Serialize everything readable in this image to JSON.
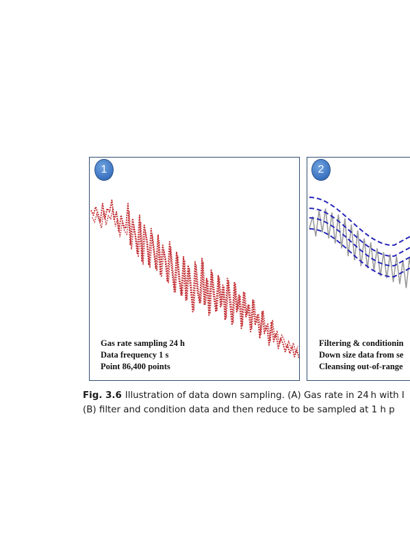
{
  "figure": {
    "panel_1": {
      "number": "1",
      "lines": [
        "Gas rate sampling 24 h",
        "Data frequency 1 s",
        "Point 86,400 points"
      ]
    },
    "panel_2": {
      "number": "2",
      "lines": [
        "Filtering & conditionin",
        "Down size data from se",
        "Cleansing out-of-range"
      ]
    },
    "caption": {
      "label": "Fig. 3.6",
      "line_1": "Illustration of data down sampling. (A) Gas rate in 24 h with I",
      "line_2": "(B) filter and condition data and then reduce to be sampled at 1 h p"
    }
  },
  "colors": {
    "raw_signal": "#c0282d",
    "filtered_signal": "#9a9a9a",
    "envelope": "#2323b8",
    "panel_border": "#2e4a6e",
    "badge": "#3b72c0"
  },
  "chart_data": [
    {
      "type": "line",
      "series": [
        {
          "values": [
            0.91,
            0.88,
            0.93,
            0.89,
            0.84,
            0.95,
            0.86,
            0.92,
            0.9,
            0.97,
            0.85,
            0.9,
            0.78,
            0.88,
            0.82,
            0.8,
            0.95,
            0.7,
            0.86,
            0.77,
            0.65,
            0.88,
            0.6,
            0.82,
            0.74,
            0.58,
            0.8,
            0.68,
            0.56,
            0.76,
            0.52,
            0.7,
            0.62,
            0.48,
            0.72,
            0.55,
            0.42,
            0.66,
            0.5,
            0.4,
            0.63,
            0.37,
            0.58,
            0.45,
            0.3,
            0.6,
            0.42,
            0.35,
            0.62,
            0.34,
            0.5,
            0.28,
            0.55,
            0.4,
            0.3,
            0.52,
            0.33,
            0.46,
            0.25,
            0.5,
            0.36,
            0.22,
            0.48,
            0.3,
            0.4,
            0.2,
            0.42,
            0.27,
            0.34,
            0.18,
            0.37,
            0.22,
            0.28,
            0.14,
            0.3,
            0.17,
            0.22,
            0.1,
            0.24,
            0.12,
            0.17,
            0.08,
            0.14,
            0.11,
            0.06,
            0.1,
            0.05,
            0.09,
            0.03,
            0.07,
            0.02
          ]
        }
      ]
    },
    {
      "type": "line",
      "series": [
        {
          "values": [
            0.7,
            0.82,
            0.62,
            0.88,
            0.66,
            0.9,
            0.6,
            0.86,
            0.55,
            0.84,
            0.5,
            0.8,
            0.42,
            0.74,
            0.38,
            0.68,
            0.32,
            0.6,
            0.3,
            0.56,
            0.28,
            0.5,
            0.22,
            0.46,
            0.2,
            0.44,
            0.16,
            0.42,
            0.14,
            0.38,
            0.1,
            0.4,
            0.18,
            0.44,
            0.2,
            0.48
          ]
        }
      ]
    }
  ]
}
